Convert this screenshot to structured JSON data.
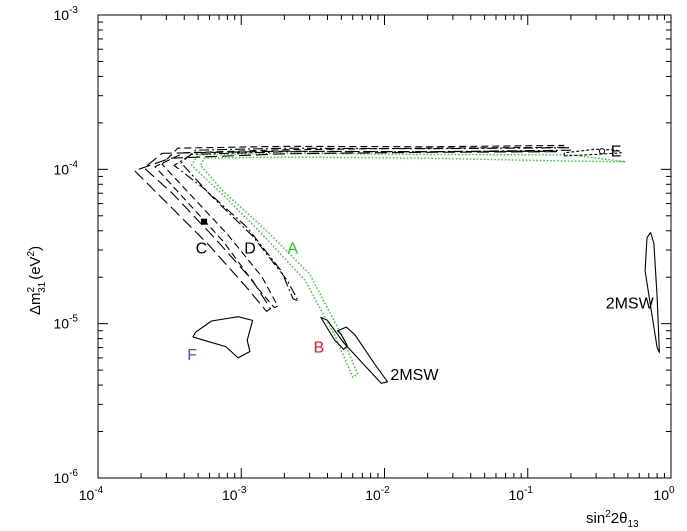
{
  "chart_data": {
    "type": "line",
    "x_scale": "log",
    "y_scale": "log",
    "xlim": [
      0.0001,
      1
    ],
    "ylim": [
      1e-06,
      0.001
    ],
    "grid": false,
    "x_axis": {
      "label_base": "sin",
      "label_sup": "2",
      "label_mid": "2θ",
      "label_sub": "13",
      "ticks": [
        {
          "value": 0.0001,
          "base": "10",
          "exp": "-4"
        },
        {
          "value": 0.001,
          "base": "10",
          "exp": "-3"
        },
        {
          "value": 0.01,
          "base": "10",
          "exp": "-2"
        },
        {
          "value": 0.1,
          "base": "10",
          "exp": "-1"
        },
        {
          "value": 1,
          "base": "10",
          "exp": "0"
        }
      ]
    },
    "y_axis": {
      "label_delta": "Δm",
      "label_sup": "2",
      "label_sub": "31",
      "label_unit_open": "(eV",
      "label_unit_sup": "2",
      "label_unit_close": ")",
      "ticks": [
        {
          "value": 0.001,
          "base": "10",
          "exp": "-3"
        },
        {
          "value": 0.0001,
          "base": "10",
          "exp": "-4"
        },
        {
          "value": 1e-05,
          "base": "10",
          "exp": "-5"
        },
        {
          "value": 1e-06,
          "base": "10",
          "exp": "-6"
        }
      ]
    },
    "series": [
      {
        "name": "A",
        "style": "dotted",
        "color": "#22cc22",
        "points": [
          [
            0.48,
            0.000112
          ],
          [
            0.2,
            0.000113
          ],
          [
            0.02,
            0.000118
          ],
          [
            0.002,
            0.00012
          ],
          [
            0.00055,
            0.000118
          ],
          [
            0.00052,
            0.000106
          ],
          [
            0.00075,
            7.2e-05
          ],
          [
            0.0015,
            4e-05
          ],
          [
            0.003,
            2.1e-05
          ],
          [
            0.005,
            8.5e-06
          ],
          [
            0.0065,
            4.7e-06
          ],
          [
            0.006,
            4.5e-06
          ],
          [
            0.0045,
            8.4e-06
          ],
          [
            0.0028,
            1.9e-05
          ],
          [
            0.0014,
            3.8e-05
          ],
          [
            0.00075,
            6.8e-05
          ],
          [
            0.00045,
            0.000106
          ],
          [
            0.0005,
            0.000124
          ],
          [
            0.002,
            0.000127
          ],
          [
            0.02,
            0.000125
          ],
          [
            0.2,
            0.000124
          ],
          [
            0.48,
            0.000112
          ]
        ]
      },
      {
        "name": "D",
        "style": "dashdot",
        "color": "#000000",
        "points": [
          [
            0.2,
            0.000133
          ],
          [
            0.02,
            0.00013
          ],
          [
            0.002,
            0.00013
          ],
          [
            0.00045,
            0.000125
          ],
          [
            0.00034,
            0.000106
          ],
          [
            0.00055,
            7.5e-05
          ],
          [
            0.0011,
            4.2e-05
          ],
          [
            0.0019,
            2.2e-05
          ],
          [
            0.0023,
            1.45e-05
          ],
          [
            0.0025,
            1.4e-05
          ],
          [
            0.0021,
            1.9e-05
          ],
          [
            0.0012,
            3.7e-05
          ],
          [
            0.00062,
            6.7e-05
          ],
          [
            0.00038,
            0.00011
          ],
          [
            0.00048,
            0.000133
          ],
          [
            0.002,
            0.000137
          ],
          [
            0.02,
            0.000136
          ],
          [
            0.2,
            0.000138
          ]
        ]
      },
      {
        "name": "C",
        "style": "dashed",
        "color": "#000000",
        "points": [
          [
            0.18,
            0.000139
          ],
          [
            0.02,
            0.000137
          ],
          [
            0.002,
            0.000134
          ],
          [
            0.0004,
            0.000128
          ],
          [
            0.00025,
            0.000104
          ],
          [
            0.00038,
            6.8e-05
          ],
          [
            0.00075,
            3.4e-05
          ],
          [
            0.0013,
            1.7e-05
          ],
          [
            0.0017,
            1.27e-05
          ],
          [
            0.0018,
            1.3e-05
          ],
          [
            0.0014,
            2e-05
          ],
          [
            0.0008,
            3.8e-05
          ],
          [
            0.00042,
            7.2e-05
          ],
          [
            0.00028,
            0.000108
          ],
          [
            0.00036,
            0.000137
          ],
          [
            0.002,
            0.000141
          ],
          [
            0.02,
            0.00014
          ],
          [
            0.18,
            0.000143
          ]
        ]
      },
      {
        "name": "B",
        "style": "longdash",
        "color": "#000000",
        "points": [
          [
            0.16,
            0.00013
          ],
          [
            0.02,
            0.000129
          ],
          [
            0.002,
            0.000126
          ],
          [
            0.00032,
            0.000118
          ],
          [
            0.00018,
            9.8e-05
          ],
          [
            0.00028,
            6.5e-05
          ],
          [
            0.0006,
            3.2e-05
          ],
          [
            0.0011,
            1.7e-05
          ],
          [
            0.0015,
            1.2e-05
          ],
          [
            0.0016,
            1.25e-05
          ],
          [
            0.0012,
            1.9e-05
          ],
          [
            0.00065,
            3.6e-05
          ],
          [
            0.00033,
            7e-05
          ],
          [
            0.00021,
            0.000102
          ],
          [
            0.00028,
            0.000127
          ],
          [
            0.002,
            0.000131
          ],
          [
            0.02,
            0.00013
          ],
          [
            0.16,
            0.000131
          ]
        ]
      },
      {
        "name": "E",
        "style": "finedash",
        "color": "#000000",
        "points": [
          [
            0.18,
            0.000122
          ],
          [
            0.3,
            0.000125
          ],
          [
            0.45,
            0.000128
          ],
          [
            0.42,
            0.000133
          ],
          [
            0.3,
            0.000135
          ],
          [
            0.18,
            0.000128
          ],
          [
            0.18,
            0.000122
          ]
        ]
      },
      {
        "name": "2MSW",
        "style": "solid",
        "color": "#000000",
        "points": [
          [
            0.004,
            1.05e-05
          ],
          [
            0.0052,
            7.5e-06
          ],
          [
            0.0075,
            5.2e-06
          ],
          [
            0.0095,
            4.1e-06
          ],
          [
            0.0105,
            4.2e-06
          ],
          [
            0.0085,
            5.5e-06
          ],
          [
            0.0062,
            8.5e-06
          ],
          [
            0.0054,
            9.5e-06
          ],
          [
            0.0047,
            9e-06
          ],
          [
            0.005,
            8.5e-06
          ],
          [
            0.0055,
            7.2e-06
          ],
          [
            0.0052,
            6.8e-06
          ],
          [
            0.0045,
            7.8e-06
          ],
          [
            0.004,
            9.3e-06
          ],
          [
            0.0036,
            1.1e-05
          ],
          [
            0.004,
            1.05e-05
          ]
        ]
      },
      {
        "name": "2MSW",
        "style": "solid",
        "color": "#000000",
        "points": [
          [
            0.72,
            3.9e-05
          ],
          [
            0.76,
            3.3e-05
          ],
          [
            0.8,
            1.5e-05
          ],
          [
            0.83,
            6.5e-06
          ],
          [
            0.8,
            7e-06
          ],
          [
            0.72,
            1.3e-05
          ],
          [
            0.66,
            2.2e-05
          ],
          [
            0.68,
            3.6e-05
          ],
          [
            0.72,
            3.9e-05
          ]
        ]
      },
      {
        "name": "F",
        "style": "solid",
        "color": "#000000",
        "points": [
          [
            0.00048,
            8.8e-06
          ],
          [
            0.00062,
            1.04e-05
          ],
          [
            0.00095,
            1.11e-05
          ],
          [
            0.0012,
            1.05e-05
          ],
          [
            0.0011,
            7.8e-06
          ],
          [
            0.00115,
            6.6e-06
          ],
          [
            0.00095,
            6e-06
          ],
          [
            0.00078,
            7.1e-06
          ],
          [
            0.00055,
            7.8e-06
          ],
          [
            0.00046,
            8.2e-06
          ],
          [
            0.00048,
            8.8e-06
          ]
        ]
      }
    ],
    "best_fit": [
      {
        "name": "C",
        "marker": "filled-square",
        "x": 0.00055,
        "y": 4.58e-05
      },
      {
        "name": "E",
        "marker": "open-circle",
        "x": 0.33,
        "y": 0.000131
      }
    ],
    "labels": [
      {
        "text": "A",
        "color": "#22cc22",
        "x": 0.0021,
        "y": 2.85e-05
      },
      {
        "text": "B",
        "color": "#e8182d",
        "x": 0.0032,
        "y": 6.5e-06
      },
      {
        "text": "C",
        "color": "#000000",
        "x": 0.00048,
        "y": 2.85e-05
      },
      {
        "text": "D",
        "color": "#000000",
        "x": 0.00105,
        "y": 2.85e-05
      },
      {
        "text": "E",
        "color": "#000000",
        "x": 0.38,
        "y": 0.000121
      },
      {
        "text": "F",
        "color": "#7a3bb5",
        "x": 0.00042,
        "y": 5.8e-06
      },
      {
        "text": "2MSW",
        "color": "#000000",
        "x": 0.011,
        "y": 4.3e-06
      },
      {
        "text": "2MSW",
        "color": "#000000",
        "x": 0.35,
        "y": 1.25e-05
      }
    ]
  }
}
